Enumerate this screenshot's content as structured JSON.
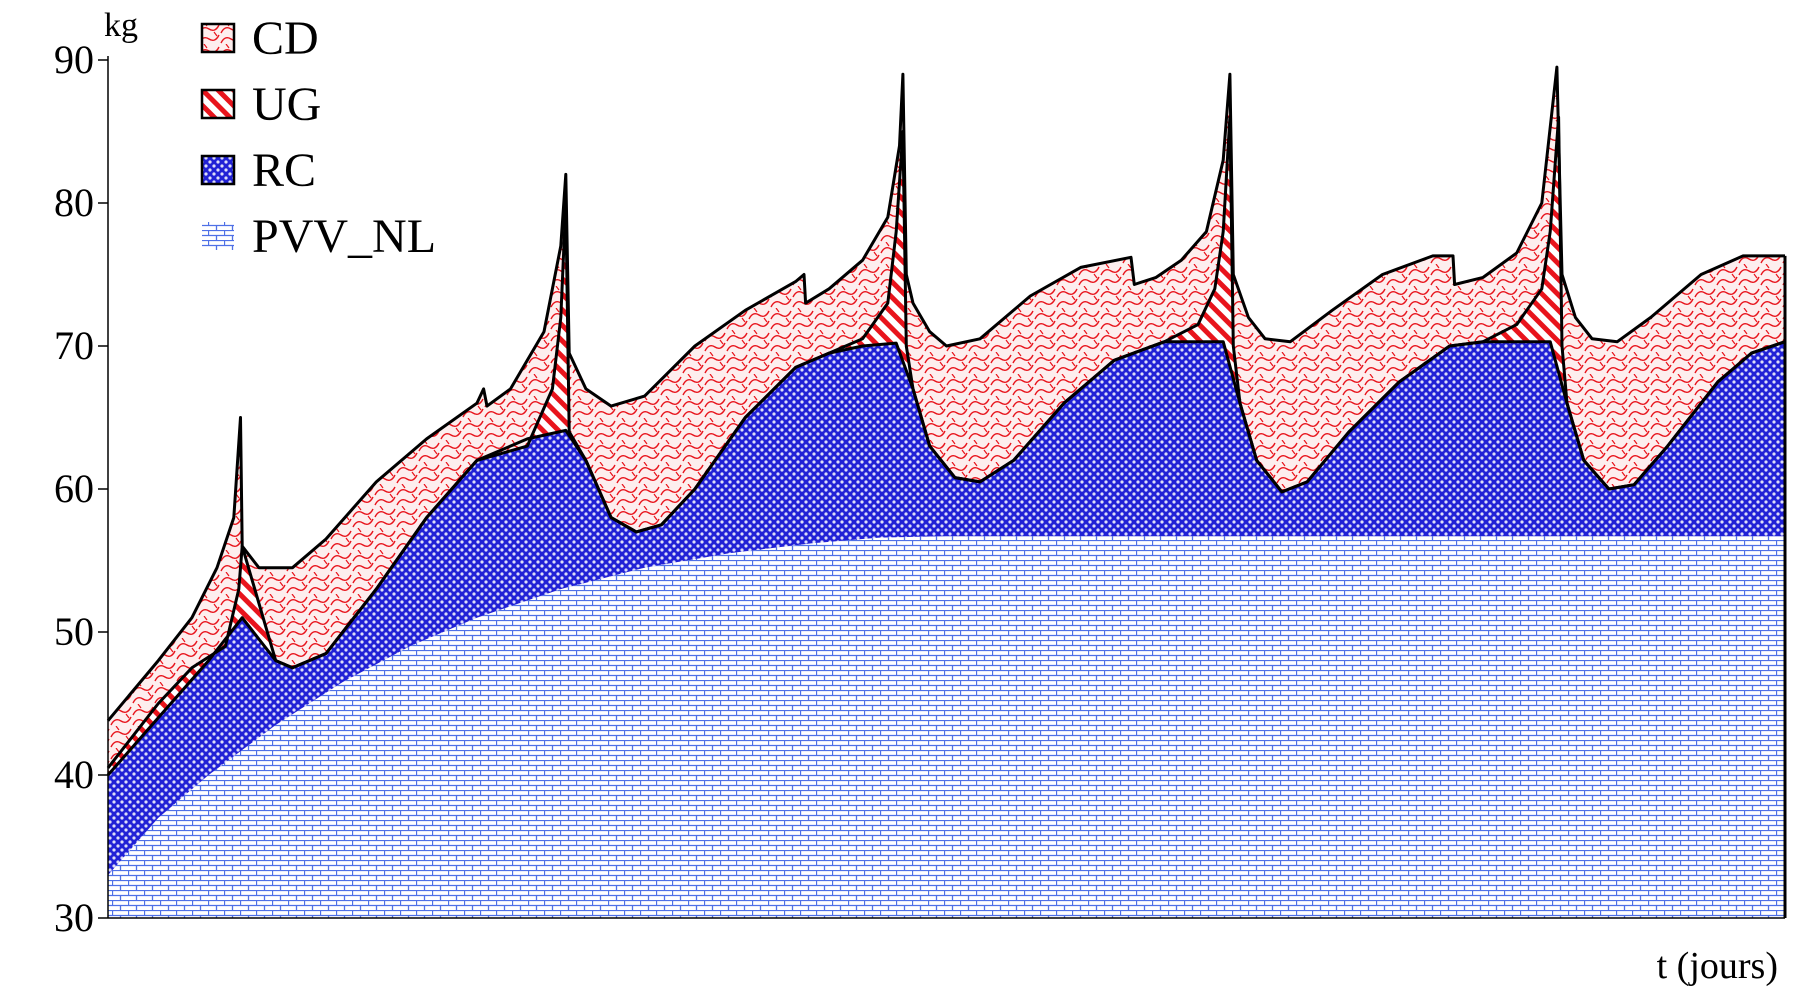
{
  "chart_data": {
    "type": "area",
    "stacked": true,
    "ylabel": "kg",
    "xlabel": "t (jours)",
    "ylim": [
      30,
      90
    ],
    "yticks": [
      30,
      40,
      50,
      60,
      70,
      80,
      90
    ],
    "grid": false,
    "legend_position": "top-left",
    "x_tick_labels_shown": false,
    "x_domain": [
      0,
      100
    ],
    "legend": [
      {
        "name": "CD",
        "color": "#e8141c"
      },
      {
        "name": "UG",
        "color": "#e8141c"
      },
      {
        "name": "RC",
        "color": "#1c1cd8"
      },
      {
        "name": "PVV_NL",
        "color": "#4f70e6"
      }
    ],
    "cumulative_series": [
      {
        "name": "PVV_NL",
        "cumulative_top": [
          [
            0,
            33
          ],
          [
            3,
            37
          ],
          [
            6,
            40
          ],
          [
            10,
            43.5
          ],
          [
            14,
            46.5
          ],
          [
            18,
            49
          ],
          [
            22,
            51
          ],
          [
            27,
            53
          ],
          [
            32,
            54.5
          ],
          [
            37,
            55.5
          ],
          [
            42,
            56.2
          ],
          [
            46,
            56.6
          ],
          [
            50,
            56.7
          ],
          [
            100,
            56.7
          ]
        ]
      },
      {
        "name": "RC",
        "cumulative_top": [
          [
            0,
            40
          ],
          [
            3,
            44
          ],
          [
            6,
            48
          ],
          [
            8,
            51
          ],
          [
            10,
            48
          ],
          [
            11,
            47.5
          ],
          [
            13,
            48.5
          ],
          [
            16,
            53
          ],
          [
            19,
            58
          ],
          [
            22,
            62
          ],
          [
            25,
            63.5
          ],
          [
            27.3,
            64.1
          ],
          [
            28.5,
            62
          ],
          [
            30,
            58
          ],
          [
            31.5,
            57
          ],
          [
            33,
            57.5
          ],
          [
            35,
            60
          ],
          [
            38,
            65
          ],
          [
            41,
            68.5
          ],
          [
            43,
            69.5
          ],
          [
            45,
            70
          ],
          [
            47,
            70.2
          ],
          [
            48,
            67
          ],
          [
            49,
            63
          ],
          [
            50.5,
            60.8
          ],
          [
            52,
            60.5
          ],
          [
            54,
            62
          ],
          [
            57,
            66
          ],
          [
            60,
            69
          ],
          [
            63,
            70.3
          ],
          [
            66.5,
            70.3
          ],
          [
            67.5,
            66
          ],
          [
            68.5,
            62
          ],
          [
            70,
            59.8
          ],
          [
            71.5,
            60.5
          ],
          [
            74,
            64
          ],
          [
            77,
            67.5
          ],
          [
            80,
            70
          ],
          [
            82,
            70.3
          ],
          [
            86,
            70.3
          ],
          [
            87,
            66
          ],
          [
            88,
            62
          ],
          [
            89.5,
            60
          ],
          [
            91,
            60.3
          ],
          [
            93,
            63
          ],
          [
            96,
            67.5
          ],
          [
            98,
            69.5
          ],
          [
            100,
            70.3
          ]
        ]
      },
      {
        "name": "UG",
        "cumulative_top": [
          [
            0,
            40.5
          ],
          [
            3,
            45
          ],
          [
            5,
            47.5
          ],
          [
            7,
            49
          ],
          [
            7.8,
            53
          ],
          [
            8,
            56
          ],
          [
            10,
            48
          ],
          [
            11,
            47.5
          ],
          [
            13,
            48.5
          ],
          [
            16,
            53
          ],
          [
            19,
            58
          ],
          [
            22,
            62
          ],
          [
            25,
            63
          ],
          [
            26.5,
            67
          ],
          [
            27,
            72
          ],
          [
            27.3,
            80
          ],
          [
            27.5,
            64
          ],
          [
            28.5,
            62
          ],
          [
            30,
            58
          ],
          [
            31.5,
            57
          ],
          [
            33,
            57.5
          ],
          [
            35,
            60
          ],
          [
            38,
            65
          ],
          [
            41,
            68.5
          ],
          [
            43,
            69.5
          ],
          [
            45,
            70.5
          ],
          [
            46.5,
            73
          ],
          [
            47,
            78
          ],
          [
            47.4,
            85
          ],
          [
            47.6,
            70
          ],
          [
            48,
            67
          ],
          [
            49,
            63
          ],
          [
            50.5,
            60.8
          ],
          [
            52,
            60.5
          ],
          [
            54,
            62
          ],
          [
            57,
            66
          ],
          [
            60,
            69
          ],
          [
            63,
            70.3
          ],
          [
            65,
            71.5
          ],
          [
            66,
            74
          ],
          [
            66.5,
            78
          ],
          [
            66.9,
            86
          ],
          [
            67.1,
            70
          ],
          [
            67.5,
            66
          ],
          [
            68.5,
            62
          ],
          [
            70,
            59.8
          ],
          [
            71.5,
            60.5
          ],
          [
            74,
            64
          ],
          [
            77,
            67.5
          ],
          [
            80,
            70
          ],
          [
            82,
            70.3
          ],
          [
            84,
            71.5
          ],
          [
            85.5,
            74
          ],
          [
            86,
            78
          ],
          [
            86.5,
            86
          ],
          [
            86.7,
            70
          ],
          [
            87,
            66
          ],
          [
            88,
            62
          ],
          [
            89.5,
            60
          ],
          [
            91,
            60.3
          ],
          [
            93,
            63
          ],
          [
            96,
            67.5
          ],
          [
            98,
            69.5
          ],
          [
            100,
            70.3
          ]
        ]
      },
      {
        "name": "CD",
        "cumulative_top": [
          [
            0,
            43.8
          ],
          [
            3,
            48
          ],
          [
            5,
            51
          ],
          [
            6.5,
            54.5
          ],
          [
            7.5,
            58
          ],
          [
            7.9,
            65
          ],
          [
            8,
            56
          ],
          [
            9,
            54.5
          ],
          [
            11,
            54.5
          ],
          [
            13,
            56.5
          ],
          [
            16,
            60.5
          ],
          [
            19,
            63.5
          ],
          [
            22,
            66
          ],
          [
            22.4,
            67
          ],
          [
            22.6,
            65.8
          ],
          [
            24,
            67
          ],
          [
            26,
            71
          ],
          [
            27,
            77
          ],
          [
            27.3,
            82
          ],
          [
            27.5,
            69.5
          ],
          [
            28.5,
            67
          ],
          [
            30,
            65.8
          ],
          [
            32,
            66.5
          ],
          [
            35,
            70
          ],
          [
            38,
            72.5
          ],
          [
            41,
            74.5
          ],
          [
            41.5,
            75
          ],
          [
            41.6,
            73
          ],
          [
            43,
            74
          ],
          [
            45,
            76
          ],
          [
            46.5,
            79
          ],
          [
            47.2,
            84
          ],
          [
            47.4,
            89
          ],
          [
            47.6,
            75
          ],
          [
            48,
            73
          ],
          [
            49,
            71
          ],
          [
            50,
            70
          ],
          [
            52,
            70.5
          ],
          [
            55,
            73.5
          ],
          [
            58,
            75.5
          ],
          [
            61,
            76.2
          ],
          [
            61.2,
            74.3
          ],
          [
            62.5,
            74.8
          ],
          [
            64,
            76
          ],
          [
            65.5,
            78
          ],
          [
            66.5,
            83
          ],
          [
            66.9,
            89
          ],
          [
            67.1,
            75
          ],
          [
            68,
            72
          ],
          [
            69,
            70.5
          ],
          [
            70.5,
            70.3
          ],
          [
            73,
            72.5
          ],
          [
            76,
            75
          ],
          [
            79,
            76.3
          ],
          [
            80.2,
            76.3
          ],
          [
            80.3,
            74.3
          ],
          [
            82,
            74.8
          ],
          [
            84,
            76.5
          ],
          [
            85.5,
            80
          ],
          [
            86.4,
            89.5
          ],
          [
            86.7,
            75
          ],
          [
            87.5,
            72
          ],
          [
            88.5,
            70.5
          ],
          [
            90,
            70.3
          ],
          [
            92,
            72
          ],
          [
            95,
            75
          ],
          [
            97.5,
            76.3
          ],
          [
            100,
            76.3
          ]
        ]
      }
    ]
  }
}
